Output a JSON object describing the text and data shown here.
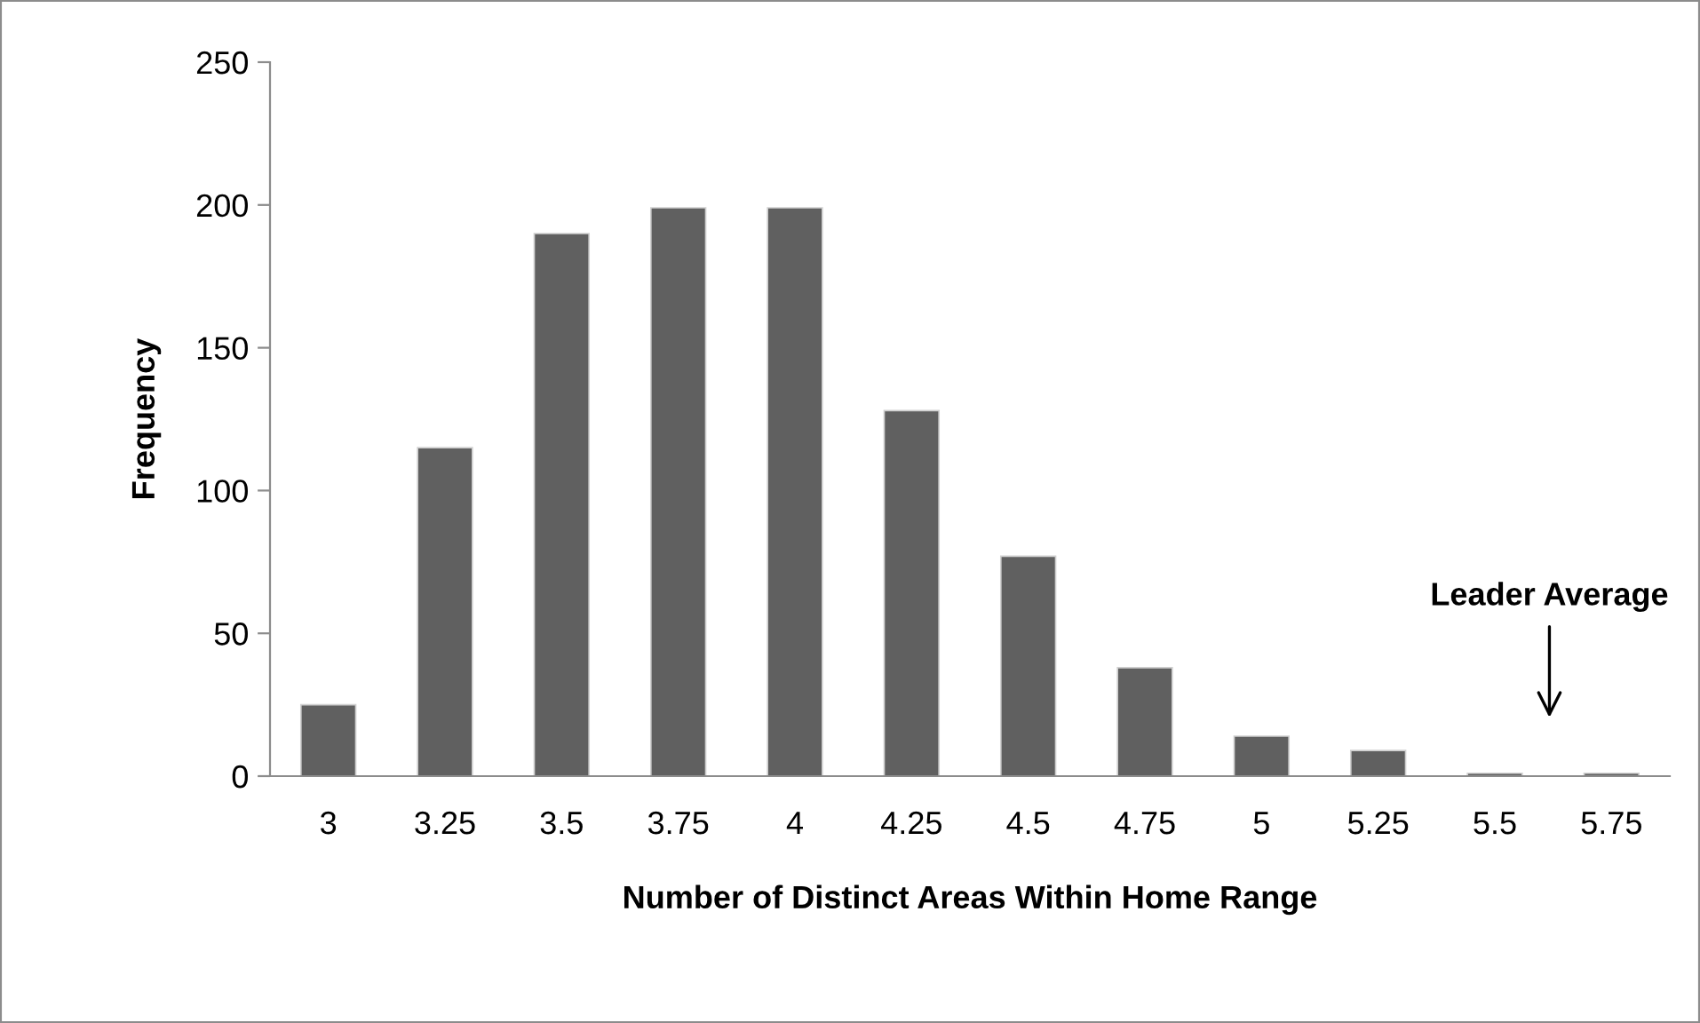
{
  "chart_data": {
    "type": "bar",
    "xlabel": "Number of Distinct Areas Within Home Range",
    "ylabel": "Frequency",
    "categories": [
      "3",
      "3.25",
      "3.5",
      "3.75",
      "4",
      "4.25",
      "4.5",
      "4.75",
      "5",
      "5.25",
      "5.5",
      "5.75"
    ],
    "values": [
      25,
      115,
      190,
      199,
      199,
      128,
      77,
      38,
      14,
      9,
      1,
      1
    ],
    "color": "#606060",
    "ylim": [
      0,
      250
    ],
    "yticks": [
      0,
      50,
      100,
      150,
      200,
      250
    ],
    "grid": false,
    "legend": false,
    "annotations": [
      "Leader Average"
    ]
  }
}
